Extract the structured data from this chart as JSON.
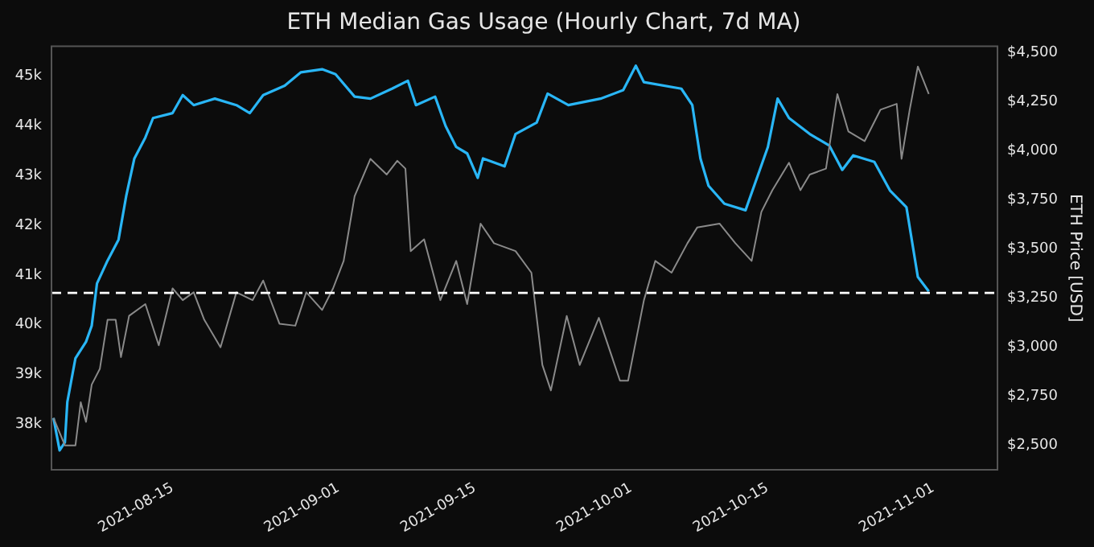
{
  "chart_data": {
    "type": "line",
    "title": "ETH Median Gas Usage (Hourly Chart, 7d MA)",
    "y2label": "ETH Price [USD]",
    "xlim": [
      "2021-08-02T14:00",
      "2021-11-07T14:00"
    ],
    "xticks": [
      "2021-08-15",
      "2021-09-01",
      "2021-09-15",
      "2021-10-01",
      "2021-10-15",
      "2021-11-01"
    ],
    "ylim": [
      37090,
      45590
    ],
    "yticks": [
      {
        "value": 38000,
        "label": "38k"
      },
      {
        "value": 39000,
        "label": "39k"
      },
      {
        "value": 40000,
        "label": "40k"
      },
      {
        "value": 41000,
        "label": "41k"
      },
      {
        "value": 42000,
        "label": "42k"
      },
      {
        "value": 43000,
        "label": "43k"
      },
      {
        "value": 44000,
        "label": "44k"
      },
      {
        "value": 45000,
        "label": "45k"
      }
    ],
    "y2lim": [
      2376,
      4533
    ],
    "y2ticks": [
      {
        "value": 2500,
        "label": "$2,500"
      },
      {
        "value": 2750,
        "label": "$2,750"
      },
      {
        "value": 3000,
        "label": "$3,000"
      },
      {
        "value": 3250,
        "label": "$3,250"
      },
      {
        "value": 3500,
        "label": "$3,500"
      },
      {
        "value": 3750,
        "label": "$3,750"
      },
      {
        "value": 4000,
        "label": "$4,000"
      },
      {
        "value": 4250,
        "label": "$4,250"
      },
      {
        "value": 4500,
        "label": "$4,500"
      }
    ],
    "grid": false,
    "legend": false,
    "ref_lines": [
      {
        "axis": "y",
        "value": 40640,
        "color": "#ffffff",
        "line_style": "dashed"
      }
    ],
    "series": [
      {
        "axis": "y2",
        "color": "#8a8a8a",
        "x": [
          "2021-08-02T19:00",
          "2021-08-03T23:00",
          "2021-08-05T01:00",
          "2021-08-05T14:00",
          "2021-08-06T03:00",
          "2021-08-06T17:00",
          "2021-08-07T13:00",
          "2021-08-08T08:00",
          "2021-08-09T04:00",
          "2021-08-09T17:00",
          "2021-08-10T13:00",
          "2021-08-12T05:00",
          "2021-08-13T14:00",
          "2021-08-15T00:00",
          "2021-08-16T01:00",
          "2021-08-17T04:00",
          "2021-08-18T06:00",
          "2021-08-19T22:00",
          "2021-08-21T13:00",
          "2021-08-23T05:00",
          "2021-08-24T07:00",
          "2021-08-25T23:00",
          "2021-08-27T14:00",
          "2021-08-28T17:00",
          "2021-08-30T08:00",
          "2021-08-31T11:00",
          "2021-09-01T13:00",
          "2021-09-02T16:00",
          "2021-09-04T07:00",
          "2021-09-05T23:00",
          "2021-09-07T01:00",
          "2021-09-07T21:00",
          "2021-09-08T10:00",
          "2021-09-09T19:00",
          "2021-09-11T11:00",
          "2021-09-13T02:00",
          "2021-09-14T05:00",
          "2021-09-15T14:00",
          "2021-09-16T23:00",
          "2021-09-19T04:00",
          "2021-09-20T19:00",
          "2021-09-21T22:00",
          "2021-09-22T19:00",
          "2021-09-24T10:00",
          "2021-09-25T18:00",
          "2021-09-27T17:00",
          "2021-09-29T21:00",
          "2021-09-30T17:00",
          "2021-10-01T12:00",
          "2021-10-02T08:00",
          "2021-10-03T12:00",
          "2021-10-05T04:00",
          "2021-10-06T19:00",
          "2021-10-07T19:00",
          "2021-10-10T02:00",
          "2021-10-11T17:00",
          "2021-10-13T09:00",
          "2021-10-14T09:00",
          "2021-10-15T12:00",
          "2021-10-17T05:00",
          "2021-10-18T09:00",
          "2021-10-19T08:00",
          "2021-10-21T00:00",
          "2021-10-22T04:00",
          "2021-10-23T07:00",
          "2021-10-24T23:00",
          "2021-10-26T14:00",
          "2021-10-28T06:00",
          "2021-10-28T18:00",
          "2021-10-29T14:00",
          "2021-10-30T10:00",
          "2021-10-31T13:00"
        ],
        "values": [
          2640,
          2500,
          2500,
          2720,
          2620,
          2810,
          2890,
          3140,
          3140,
          2950,
          3160,
          3220,
          3010,
          3300,
          3240,
          3280,
          3140,
          3000,
          3280,
          3240,
          3340,
          3120,
          3110,
          3280,
          3190,
          3300,
          3440,
          3770,
          3960,
          3880,
          3950,
          3910,
          3490,
          3550,
          3240,
          3440,
          3220,
          3630,
          3530,
          3490,
          3380,
          2910,
          2780,
          3160,
          2910,
          3150,
          2830,
          2830,
          3030,
          3240,
          3440,
          3380,
          3530,
          3610,
          3630,
          3530,
          3440,
          3690,
          3800,
          3940,
          3800,
          3880,
          3910,
          4290,
          4100,
          4050,
          4210,
          4240,
          3960,
          4210,
          4430,
          4290
        ]
      },
      {
        "axis": "y",
        "color": "#29b6f6",
        "x": [
          "2021-08-02T19:00",
          "2021-08-03T10:00",
          "2021-08-03T23:00",
          "2021-08-04T05:00",
          "2021-08-05T01:00",
          "2021-08-06T03:00",
          "2021-08-06T17:00",
          "2021-08-07T06:00",
          "2021-08-08T08:00",
          "2021-08-09T11:00",
          "2021-08-10T06:00",
          "2021-08-11T02:00",
          "2021-08-12T05:00",
          "2021-08-13T00:00",
          "2021-08-15T00:00",
          "2021-08-16T01:00",
          "2021-08-17T04:00",
          "2021-08-19T08:00",
          "2021-08-21T13:00",
          "2021-08-22T22:00",
          "2021-08-24T07:00",
          "2021-08-26T12:00",
          "2021-08-28T04:00",
          "2021-08-30T08:00",
          "2021-08-31T17:00",
          "2021-09-02T16:00",
          "2021-09-04T07:00",
          "2021-09-06T12:00",
          "2021-09-08T03:00",
          "2021-09-08T23:00",
          "2021-09-10T22:00",
          "2021-09-12T00:00",
          "2021-09-13T02:00",
          "2021-09-14T05:00",
          "2021-09-15T07:00",
          "2021-09-15T20:00",
          "2021-09-18T01:00",
          "2021-09-19T04:00",
          "2021-09-21T08:00",
          "2021-09-22T11:00",
          "2021-09-24T14:00",
          "2021-09-27T21:00",
          "2021-09-30T05:00",
          "2021-10-01T12:00",
          "2021-10-02T08:00",
          "2021-10-06T04:00",
          "2021-10-07T07:00",
          "2021-10-08T03:00",
          "2021-10-08T23:00",
          "2021-10-10T14:00",
          "2021-10-12T18:00",
          "2021-10-15T01:00",
          "2021-10-16T01:00",
          "2021-10-17T05:00",
          "2021-10-19T08:00",
          "2021-10-21T08:00",
          "2021-10-22T16:00",
          "2021-10-23T19:00",
          "2021-10-25T23:00",
          "2021-10-27T14:00",
          "2021-10-29T06:00",
          "2021-10-30T10:00",
          "2021-10-31T13:00"
        ],
        "values": [
          38130,
          37480,
          37640,
          38450,
          39330,
          39660,
          39980,
          40830,
          41290,
          41710,
          42590,
          43340,
          43760,
          44150,
          44250,
          44610,
          44410,
          44540,
          44410,
          44250,
          44610,
          44800,
          45070,
          45130,
          45030,
          44580,
          44540,
          44740,
          44900,
          44410,
          44580,
          43990,
          43570,
          43440,
          42950,
          43340,
          43180,
          43830,
          44060,
          44640,
          44410,
          44540,
          44710,
          45200,
          44870,
          44740,
          44410,
          43340,
          42790,
          42430,
          42300,
          43570,
          44540,
          44150,
          43830,
          43600,
          43110,
          43400,
          43270,
          42690,
          42360,
          40960,
          40670
        ]
      }
    ]
  }
}
